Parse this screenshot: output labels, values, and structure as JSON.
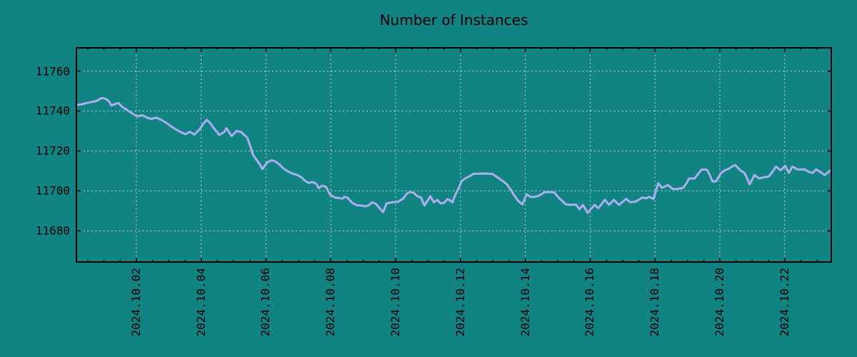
{
  "page": {
    "background_color": "#128383"
  },
  "chart_data": {
    "type": "line",
    "title": "Number of Instances",
    "xlabel": "",
    "ylabel": "",
    "legend": "none",
    "grid": true,
    "line_color": "#abaff0",
    "grid_color": "#c9d1c9",
    "axis_color": "#000000",
    "text_color": "#000000",
    "x_unit": "days since 2024-09-30",
    "xlim": [
      0.13,
      23.46
    ],
    "ylim": [
      11664,
      11772
    ],
    "y_ticks": [
      11680,
      11700,
      11720,
      11740,
      11760
    ],
    "x_ticks": [
      {
        "day": 2,
        "label": "2024.10.02"
      },
      {
        "day": 4,
        "label": "2024.10.04"
      },
      {
        "day": 6,
        "label": "2024.10.06"
      },
      {
        "day": 8,
        "label": "2024.10.08"
      },
      {
        "day": 10,
        "label": "2024.10.10"
      },
      {
        "day": 12,
        "label": "2024.10.12"
      },
      {
        "day": 14,
        "label": "2024.10.14"
      },
      {
        "day": 16,
        "label": "2024.10.16"
      },
      {
        "day": 18,
        "label": "2024.10.18"
      },
      {
        "day": 20,
        "label": "2024.10.20"
      },
      {
        "day": 22,
        "label": "2024.10.22"
      }
    ],
    "x_minor_tick_step_days": 0.5,
    "points": [
      [
        0.13,
        11743
      ],
      [
        0.31,
        11743.3
      ],
      [
        0.46,
        11744
      ],
      [
        0.64,
        11744.6
      ],
      [
        0.77,
        11745
      ],
      [
        0.93,
        11746.5
      ],
      [
        1.04,
        11746.2
      ],
      [
        1.15,
        11745
      ],
      [
        1.23,
        11742.8
      ],
      [
        1.34,
        11743.5
      ],
      [
        1.45,
        11744
      ],
      [
        1.57,
        11742
      ],
      [
        1.74,
        11740.2
      ],
      [
        1.9,
        11738.5
      ],
      [
        2.03,
        11737.3
      ],
      [
        2.18,
        11737.9
      ],
      [
        2.34,
        11736.6
      ],
      [
        2.47,
        11736.1
      ],
      [
        2.62,
        11736.7
      ],
      [
        2.78,
        11735.5
      ],
      [
        2.91,
        11734.2
      ],
      [
        3.06,
        11732.5
      ],
      [
        3.22,
        11730.8
      ],
      [
        3.35,
        11729.6
      ],
      [
        3.51,
        11728.4
      ],
      [
        3.66,
        11729.6
      ],
      [
        3.79,
        11728.2
      ],
      [
        3.95,
        11730.8
      ],
      [
        4.06,
        11733.5
      ],
      [
        4.17,
        11735.6
      ],
      [
        4.28,
        11734
      ],
      [
        4.39,
        11731.4
      ],
      [
        4.56,
        11728
      ],
      [
        4.72,
        11729.6
      ],
      [
        4.78,
        11731.4
      ],
      [
        4.94,
        11727.4
      ],
      [
        5.09,
        11730
      ],
      [
        5.23,
        11729.5
      ],
      [
        5.42,
        11726.7
      ],
      [
        5.49,
        11723.7
      ],
      [
        5.6,
        11718
      ],
      [
        5.71,
        11715.5
      ],
      [
        5.82,
        11713
      ],
      [
        5.89,
        11711
      ],
      [
        6.02,
        11714
      ],
      [
        6.15,
        11715.3
      ],
      [
        6.26,
        11715
      ],
      [
        6.42,
        11713.2
      ],
      [
        6.53,
        11711.4
      ],
      [
        6.66,
        11709.9
      ],
      [
        6.81,
        11708.7
      ],
      [
        6.97,
        11707.9
      ],
      [
        7.1,
        11706.7
      ],
      [
        7.21,
        11704.9
      ],
      [
        7.32,
        11704
      ],
      [
        7.43,
        11704.4
      ],
      [
        7.54,
        11703.7
      ],
      [
        7.63,
        11701.4
      ],
      [
        7.74,
        11702.6
      ],
      [
        7.85,
        11702
      ],
      [
        7.98,
        11698
      ],
      [
        8.13,
        11696.7
      ],
      [
        8.36,
        11696.1
      ],
      [
        8.42,
        11697
      ],
      [
        8.51,
        11696.6
      ],
      [
        8.64,
        11694.3
      ],
      [
        8.8,
        11692.8
      ],
      [
        8.95,
        11692.6
      ],
      [
        9.08,
        11692.3
      ],
      [
        9.17,
        11692.8
      ],
      [
        9.28,
        11694.3
      ],
      [
        9.39,
        11693.5
      ],
      [
        9.5,
        11691.4
      ],
      [
        9.61,
        11689.3
      ],
      [
        9.72,
        11693.7
      ],
      [
        9.9,
        11694.3
      ],
      [
        10.07,
        11694.5
      ],
      [
        10.23,
        11696.1
      ],
      [
        10.34,
        11698.5
      ],
      [
        10.43,
        11699.5
      ],
      [
        10.56,
        11699
      ],
      [
        10.67,
        11697.3
      ],
      [
        10.78,
        11696.7
      ],
      [
        10.89,
        11692.7
      ],
      [
        11.0,
        11695.5
      ],
      [
        11.07,
        11697.3
      ],
      [
        11.18,
        11694.3
      ],
      [
        11.29,
        11695.5
      ],
      [
        11.38,
        11693.7
      ],
      [
        11.49,
        11694
      ],
      [
        11.6,
        11695.9
      ],
      [
        11.68,
        11695.2
      ],
      [
        11.75,
        11694.3
      ],
      [
        11.84,
        11697.9
      ],
      [
        11.95,
        11701.5
      ],
      [
        12.04,
        11705
      ],
      [
        12.15,
        11706.3
      ],
      [
        12.26,
        11707.2
      ],
      [
        12.39,
        11708.5
      ],
      [
        12.55,
        11708.6
      ],
      [
        12.72,
        11708.7
      ],
      [
        12.88,
        11708.6
      ],
      [
        12.99,
        11708.4
      ],
      [
        13.14,
        11706.8
      ],
      [
        13.27,
        11705.3
      ],
      [
        13.43,
        11703.3
      ],
      [
        13.54,
        11700.8
      ],
      [
        13.65,
        11697.9
      ],
      [
        13.78,
        11695
      ],
      [
        13.91,
        11693.2
      ],
      [
        14.04,
        11698.3
      ],
      [
        14.15,
        11697
      ],
      [
        14.24,
        11696.9
      ],
      [
        14.35,
        11697.2
      ],
      [
        14.46,
        11698
      ],
      [
        14.59,
        11699.3
      ],
      [
        14.75,
        11699.4
      ],
      [
        14.9,
        11699.2
      ],
      [
        15.03,
        11696.5
      ],
      [
        15.14,
        11695
      ],
      [
        15.25,
        11693.2
      ],
      [
        15.41,
        11693
      ],
      [
        15.56,
        11693.1
      ],
      [
        15.67,
        11690.8
      ],
      [
        15.78,
        11693
      ],
      [
        15.92,
        11689
      ],
      [
        16.03,
        11691
      ],
      [
        16.14,
        11693
      ],
      [
        16.25,
        11691.3
      ],
      [
        16.36,
        11693.5
      ],
      [
        16.45,
        11695.5
      ],
      [
        16.58,
        11693
      ],
      [
        16.73,
        11695.5
      ],
      [
        16.89,
        11693
      ],
      [
        17.0,
        11694.5
      ],
      [
        17.11,
        11696
      ],
      [
        17.24,
        11694.3
      ],
      [
        17.39,
        11694.6
      ],
      [
        17.5,
        11695.5
      ],
      [
        17.61,
        11696.7
      ],
      [
        17.72,
        11696.3
      ],
      [
        17.83,
        11697
      ],
      [
        17.95,
        11695.9
      ],
      [
        18.1,
        11703.8
      ],
      [
        18.21,
        11701.5
      ],
      [
        18.32,
        11702.3
      ],
      [
        18.39,
        11703
      ],
      [
        18.5,
        11701.5
      ],
      [
        18.56,
        11700.9
      ],
      [
        18.72,
        11701
      ],
      [
        18.87,
        11701.5
      ],
      [
        18.98,
        11704
      ],
      [
        19.05,
        11706.2
      ],
      [
        19.22,
        11706.2
      ],
      [
        19.33,
        11708.5
      ],
      [
        19.44,
        11710.7
      ],
      [
        19.6,
        11710.6
      ],
      [
        19.69,
        11708
      ],
      [
        19.77,
        11704.7
      ],
      [
        19.88,
        11704.8
      ],
      [
        20.04,
        11709
      ],
      [
        20.15,
        11710.3
      ],
      [
        20.26,
        11711
      ],
      [
        20.41,
        11712.5
      ],
      [
        20.48,
        11712.9
      ],
      [
        20.63,
        11710.3
      ],
      [
        20.76,
        11709
      ],
      [
        20.85,
        11706
      ],
      [
        20.92,
        11703.3
      ],
      [
        21.07,
        11707.9
      ],
      [
        21.21,
        11706.2
      ],
      [
        21.36,
        11706.8
      ],
      [
        21.51,
        11707.2
      ],
      [
        21.62,
        11709.5
      ],
      [
        21.73,
        11712.2
      ],
      [
        21.87,
        11710.3
      ],
      [
        22.02,
        11712.5
      ],
      [
        22.13,
        11709
      ],
      [
        22.24,
        11712.2
      ],
      [
        22.39,
        11710.7
      ],
      [
        22.53,
        11710.7
      ],
      [
        22.61,
        11710.8
      ],
      [
        22.75,
        11709.5
      ],
      [
        22.86,
        11709
      ],
      [
        22.97,
        11710.7
      ],
      [
        23.08,
        11709.7
      ],
      [
        23.23,
        11707.9
      ],
      [
        23.34,
        11709.3
      ],
      [
        23.45,
        11710.7
      ]
    ]
  }
}
